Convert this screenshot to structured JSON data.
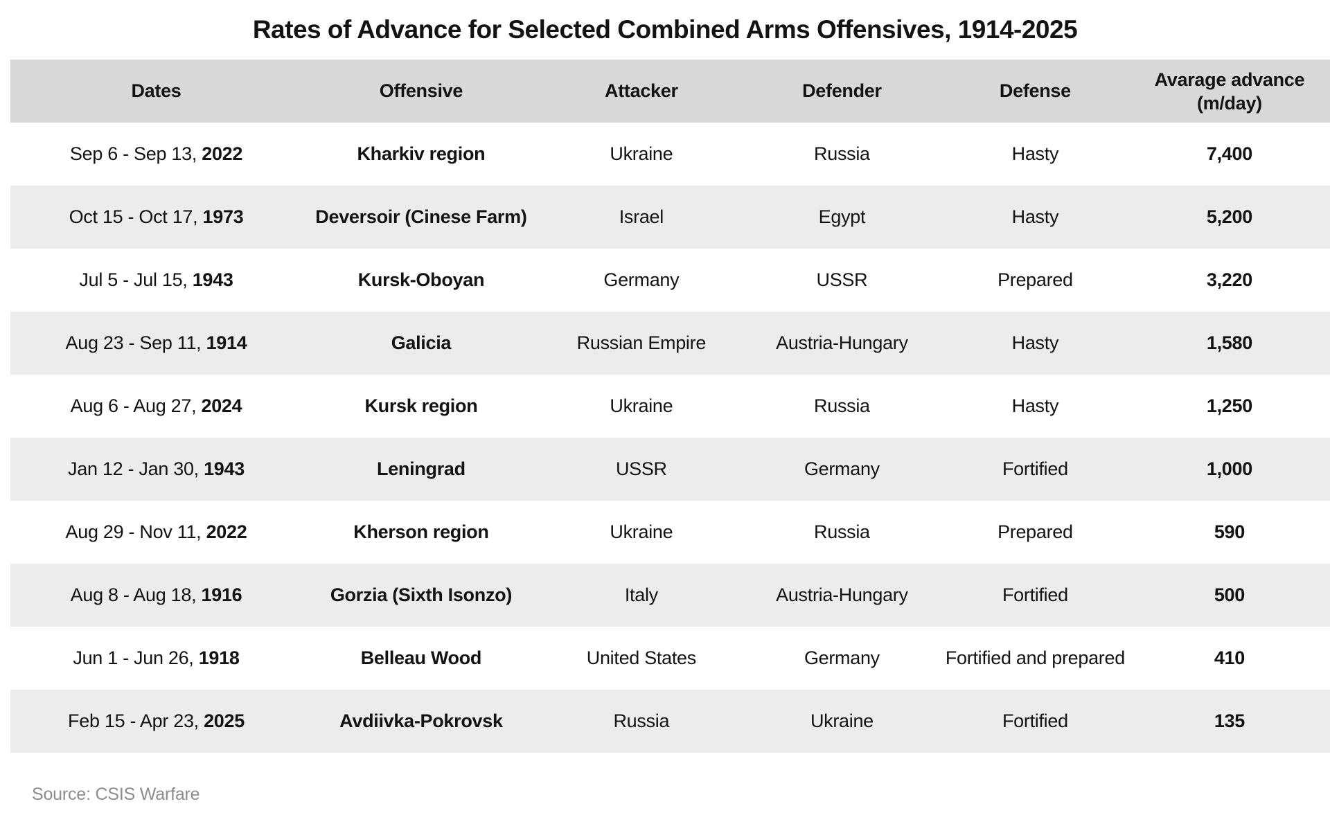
{
  "title": "Rates of Advance for Selected Combined Arms Offensives, 1914-2025",
  "source_label": "Source: CSIS Warfare",
  "colors": {
    "background": "#ffffff",
    "header_bg": "#d8d8d8",
    "row_alt_bg": "#ececec",
    "text": "#131313",
    "source_text": "#8d8d8d"
  },
  "table": {
    "headers": [
      "Dates",
      "Offensive",
      "Attacker",
      "Defender",
      "Defense"
    ],
    "advance_header": {
      "line1": "Avarage advance",
      "line2": "(m/day)"
    },
    "rows": [
      {
        "date_prefix": "Sep 6 - Sep 13, ",
        "year": "2022",
        "offensive": "Kharkiv region",
        "attacker": "Ukraine",
        "defender": "Russia",
        "defense": "Hasty",
        "advance": "7,400"
      },
      {
        "date_prefix": "Oct 15 - Oct 17, ",
        "year": "1973",
        "offensive": "Deversoir (Cinese Farm)",
        "attacker": "Israel",
        "defender": "Egypt",
        "defense": "Hasty",
        "advance": "5,200"
      },
      {
        "date_prefix": "Jul 5 - Jul 15, ",
        "year": "1943",
        "offensive": "Kursk-Oboyan",
        "attacker": "Germany",
        "defender": "USSR",
        "defense": "Prepared",
        "advance": "3,220"
      },
      {
        "date_prefix": "Aug 23 - Sep 11, ",
        "year": "1914",
        "offensive": "Galicia",
        "attacker": "Russian Empire",
        "defender": "Austria-Hungary",
        "defense": "Hasty",
        "advance": "1,580"
      },
      {
        "date_prefix": "Aug 6 - Aug 27, ",
        "year": "2024",
        "offensive": "Kursk region",
        "attacker": "Ukraine",
        "defender": "Russia",
        "defense": "Hasty",
        "advance": "1,250"
      },
      {
        "date_prefix": "Jan 12 - Jan 30, ",
        "year": "1943",
        "offensive": "Leningrad",
        "attacker": "USSR",
        "defender": "Germany",
        "defense": "Fortified",
        "advance": "1,000"
      },
      {
        "date_prefix": "Aug 29 - Nov 11, ",
        "year": "2022",
        "offensive": "Kherson region",
        "attacker": "Ukraine",
        "defender": "Russia",
        "defense": "Prepared",
        "advance": "590"
      },
      {
        "date_prefix": "Aug 8 - Aug 18, ",
        "year": "1916",
        "offensive": "Gorzia (Sixth Isonzo)",
        "attacker": "Italy",
        "defender": "Austria-Hungary",
        "defense": "Fortified",
        "advance": "500"
      },
      {
        "date_prefix": "Jun 1 - Jun 26, ",
        "year": "1918",
        "offensive": "Belleau Wood",
        "attacker": "United States",
        "defender": "Germany",
        "defense": "Fortified and prepared",
        "advance": "410"
      },
      {
        "date_prefix": "Feb 15 - Apr 23, ",
        "year": "2025",
        "offensive": "Avdiivka-Pokrovsk",
        "attacker": "Russia",
        "defender": "Ukraine",
        "defense": "Fortified",
        "advance": "135"
      }
    ]
  },
  "chart_data": {
    "type": "table",
    "title": "Rates of Advance for Selected Combined Arms Offensives, 1914-2025",
    "columns": [
      "Dates",
      "Offensive",
      "Attacker",
      "Defender",
      "Defense",
      "Avarage advance (m/day)"
    ],
    "rows": [
      [
        "Sep 6 - Sep 13, 2022",
        "Kharkiv region",
        "Ukraine",
        "Russia",
        "Hasty",
        7400
      ],
      [
        "Oct 15 - Oct 17, 1973",
        "Deversoir (Cinese Farm)",
        "Israel",
        "Egypt",
        "Hasty",
        5200
      ],
      [
        "Jul 5 - Jul 15, 1943",
        "Kursk-Oboyan",
        "Germany",
        "USSR",
        "Prepared",
        3220
      ],
      [
        "Aug 23 - Sep 11, 1914",
        "Galicia",
        "Russian Empire",
        "Austria-Hungary",
        "Hasty",
        1580
      ],
      [
        "Aug 6 - Aug 27, 2024",
        "Kursk region",
        "Ukraine",
        "Russia",
        "Hasty",
        1250
      ],
      [
        "Jan 12 - Jan 30, 1943",
        "Leningrad",
        "USSR",
        "Germany",
        "Fortified",
        1000
      ],
      [
        "Aug 29 - Nov 11, 2022",
        "Kherson region",
        "Ukraine",
        "Russia",
        "Prepared",
        590
      ],
      [
        "Aug 8 - Aug 18, 1916",
        "Gorzia (Sixth Isonzo)",
        "Italy",
        "Austria-Hungary",
        "Fortified",
        500
      ],
      [
        "Jun 1 - Jun 26, 1918",
        "Belleau Wood",
        "United States",
        "Germany",
        "Fortified and prepared",
        410
      ],
      [
        "Feb 15 - Apr 23, 2025",
        "Avdiivka-Pokrovsk",
        "Russia",
        "Ukraine",
        "Fortified",
        135
      ]
    ],
    "source": "Source: CSIS Warfare",
    "layout": {
      "alternating_rows": true,
      "grid": false,
      "header_background": "#d8d8d8"
    }
  }
}
